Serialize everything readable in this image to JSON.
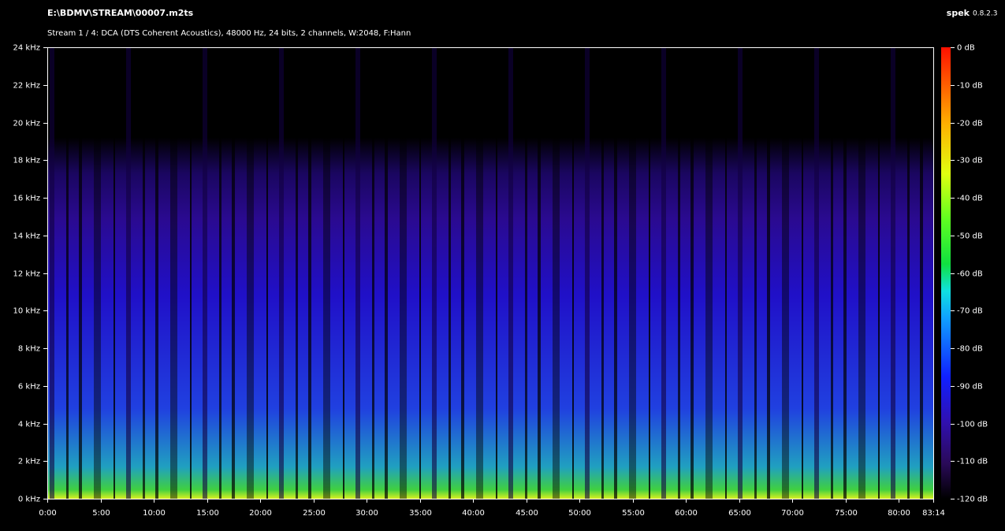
{
  "chart_data": {
    "type": "spectrogram",
    "title": "E:\\BDMV\\STREAM\\00007.m2ts",
    "subtitle": "Stream 1 / 4: DCA (DTS Coherent Acoustics), 48000 Hz, 24 bits, 2 channels, W:2048, F:Hann",
    "app_name": "spek",
    "app_version": "0.8.2.3",
    "xlim": [
      0,
      4994
    ],
    "xticks": [
      {
        "value": 0,
        "label": "0:00"
      },
      {
        "value": 300,
        "label": "5:00"
      },
      {
        "value": 600,
        "label": "10:00"
      },
      {
        "value": 900,
        "label": "15:00"
      },
      {
        "value": 1200,
        "label": "20:00"
      },
      {
        "value": 1500,
        "label": "25:00"
      },
      {
        "value": 1800,
        "label": "30:00"
      },
      {
        "value": 2100,
        "label": "35:00"
      },
      {
        "value": 2400,
        "label": "40:00"
      },
      {
        "value": 2700,
        "label": "45:00"
      },
      {
        "value": 3000,
        "label": "50:00"
      },
      {
        "value": 3300,
        "label": "55:00"
      },
      {
        "value": 3600,
        "label": "60:00"
      },
      {
        "value": 3900,
        "label": "65:00"
      },
      {
        "value": 4200,
        "label": "70:00"
      },
      {
        "value": 4500,
        "label": "75:00"
      },
      {
        "value": 4800,
        "label": "80:00"
      },
      {
        "value": 4994,
        "label": "83:14"
      }
    ],
    "ylim": [
      0,
      24
    ],
    "yticks": [
      {
        "value": 0,
        "label": "0 kHz"
      },
      {
        "value": 2,
        "label": "2 kHz"
      },
      {
        "value": 4,
        "label": "4 kHz"
      },
      {
        "value": 6,
        "label": "6 kHz"
      },
      {
        "value": 8,
        "label": "8 kHz"
      },
      {
        "value": 10,
        "label": "10 kHz"
      },
      {
        "value": 12,
        "label": "12 kHz"
      },
      {
        "value": 14,
        "label": "14 kHz"
      },
      {
        "value": 16,
        "label": "16 kHz"
      },
      {
        "value": 18,
        "label": "18 kHz"
      },
      {
        "value": 20,
        "label": "20 kHz"
      },
      {
        "value": 22,
        "label": "22 kHz"
      },
      {
        "value": 24,
        "label": "24 kHz"
      }
    ],
    "y2lim": [
      -120,
      0
    ],
    "y2ticks": [
      {
        "value": 0,
        "label": "0 dB"
      },
      {
        "value": -10,
        "label": "-10 dB"
      },
      {
        "value": -20,
        "label": "-20 dB"
      },
      {
        "value": -30,
        "label": "-30 dB"
      },
      {
        "value": -40,
        "label": "-40 dB"
      },
      {
        "value": -50,
        "label": "-50 dB"
      },
      {
        "value": -60,
        "label": "-60 dB"
      },
      {
        "value": -70,
        "label": "-70 dB"
      },
      {
        "value": -80,
        "label": "-80 dB"
      },
      {
        "value": -90,
        "label": "-90 dB"
      },
      {
        "value": -100,
        "label": "-100 dB"
      },
      {
        "value": -110,
        "label": "-110 dB"
      },
      {
        "value": -120,
        "label": "-120 dB"
      }
    ]
  }
}
